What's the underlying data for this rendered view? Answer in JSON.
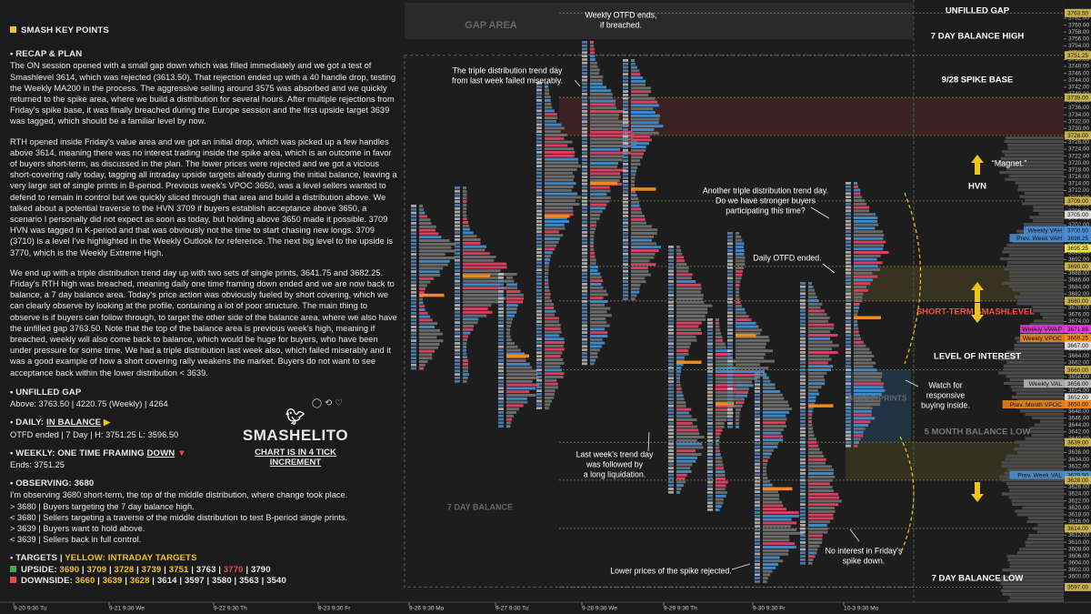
{
  "sidebar": {
    "title": "SMASH KEY POINTS",
    "recap": {
      "heading": "RECAP & PLAN",
      "paragraphs": [
        "The ON session opened with a small gap down which was filled immediately and we got a test of Smashlevel 3614, which was rejected (3613.50). That rejection ended up with a 40 handle drop, testing the Weekly MA200 in the process. The aggressive selling around 3575 was absorbed and we quickly returned to the spike area, where we build a distribution for several hours. After multiple rejections from Friday's spike base, it was finally breached during the Europe session and the first upside target 3639 was tagged, which should be a familiar level by now.",
        "RTH opened inside Friday's value area and we got an initial drop, which was picked up a few handles above 3614, meaning there was no interest trading inside the spike area, which is an outcome in favor of buyers short-term, as discussed in the plan. The lower prices were rejected and we got a vicious short-covering rally today, tagging all intraday upside targets already during the initial balance, leaving a very large set of single prints in B-period. Previous week's VPOC 3650, was a level sellers wanted to defend to remain in control but we quickly sliced through that area and build a distribution above. We talked about a potential traverse to the HVN 3709 if buyers establish acceptance above 3650, a scenario I personally did not expect as soon as today, but holding above 3650 made it possible. 3709 HVN was tagged in K-period and that was obviously not the time to start chasing new longs. 3709 (3710) is a level I've highlighted in the Weekly Outlook for reference. The next big level to the upside is 3770, which is the Weekly Extreme High.",
        "We end up with a triple distribution trend day up with two sets of single prints, 3641.75 and 3682.25. Friday's RTH high was breached, meaning daily one time framing down ended and we are now back to balance, a 7 day balance area. Today's price action was obviously fueled by short covering, which we can clearly observe by looking at the profile, containing a lot of poor structure. The main thing to observe is if buyers can follow through, to target the other side of the balance area, where we also have the unfilled gap 3763.50. Note that the top of the balance area is previous week's high, meaning if breached, weekly will also come back to balance, which would be huge for buyers, who have been under pressure for some time. We had a triple distribution last week also, which failed miserably and it was a good example of how a short covering rally weakens the market. Buyers do not want to see acceptance back within the lower distribution < 3639."
      ]
    },
    "unfilled_gap": {
      "heading": "UNFILLED GAP",
      "text": "Above: 3763.50 | 4220.75 (Weekly) | 4264"
    },
    "daily": {
      "heading": "DAILY:",
      "status": "IN BALANCE",
      "text": "OTFD ended | 7 Day | H: 3751.25 L: 3596.50"
    },
    "weekly": {
      "heading": "WEEKLY: ONE TIME FRAMING",
      "status": "DOWN",
      "text": "Ends: 3751.25"
    },
    "observing": {
      "heading": "OBSERVING: 3680",
      "lines": [
        "I'm observing 3680 short-term, the top of the middle distribution, where change took place.",
        "> 3680 | Buyers targeting the 7 day balance high.",
        "< 3680 | Sellers targeting a traverse of the middle distribution to test B-period single prints.",
        "> 3639 | Buyers want to hold above.",
        "< 3639 | Sellers back in full control."
      ]
    },
    "targets": {
      "heading": "TARGETS",
      "yellow_note": "YELLOW: INTRADAY TARGETS",
      "upside_label": "UPSIDE:",
      "upside": [
        {
          "text": "3690",
          "color": "#f0c419"
        },
        {
          "text": "3709",
          "color": "#f0c419"
        },
        {
          "text": "3728",
          "color": "#f0c419"
        },
        {
          "text": "3739",
          "color": "#f0c419"
        },
        {
          "text": "3751",
          "color": "#f0c419"
        },
        {
          "text": "3763",
          "color": "#e8e8e8"
        },
        {
          "text": "3770",
          "color": "#e84a4a"
        },
        {
          "text": "3790",
          "color": "#e8e8e8"
        }
      ],
      "downside_label": "DOWNSIDE:",
      "downside": [
        {
          "text": "3660",
          "color": "#f0c419"
        },
        {
          "text": "3639",
          "color": "#f0c419"
        },
        {
          "text": "3628",
          "color": "#f0c419"
        },
        {
          "text": "3614",
          "color": "#e8e8e8"
        },
        {
          "text": "3597",
          "color": "#e8e8e8"
        },
        {
          "text": "3580",
          "color": "#e8e8e8"
        },
        {
          "text": "3563",
          "color": "#e8e8e8"
        },
        {
          "text": "3540",
          "color": "#e8e8e8"
        }
      ]
    }
  },
  "brand": {
    "handle": "SMASHELITO",
    "note": "CHART IS IN 4 TICK INCREMENT"
  },
  "chart": {
    "price_ticks": [
      "3762.00",
      "3760.00",
      "3758.00",
      "3756.00",
      "3754.00",
      "3752.00",
      "3750.00",
      "3748.00",
      "3746.00",
      "3744.00",
      "3742.00",
      "3740.00",
      "3738.00",
      "3736.00",
      "3734.00",
      "3732.00",
      "3730.00",
      "3728.00",
      "3726.00",
      "3724.00",
      "3722.00",
      "3720.00",
      "3718.00",
      "3716.00",
      "3714.00",
      "3712.00",
      "3710.00",
      "3708.00",
      "3706.00",
      "3704.00",
      "3702.00",
      "3700.00",
      "3698.00",
      "3696.00",
      "3694.00",
      "3692.00",
      "3690.00",
      "3688.00",
      "3686.00",
      "3684.00",
      "3682.00",
      "3680.00",
      "3678.00",
      "3676.00",
      "3674.00",
      "3672.00",
      "3670.00",
      "3668.00",
      "3666.00",
      "3664.00",
      "3662.00",
      "3660.00",
      "3658.00",
      "3656.00",
      "3654.00",
      "3652.00",
      "3650.00",
      "3648.00",
      "3646.00",
      "3644.00",
      "3642.00",
      "3640.00",
      "3638.00",
      "3636.00",
      "3634.00",
      "3632.00",
      "3630.00",
      "3628.00",
      "3626.00",
      "3624.00",
      "3622.00",
      "3620.00",
      "3618.00",
      "3616.00",
      "3614.00",
      "3612.00",
      "3610.00",
      "3608.00",
      "3606.00",
      "3604.00",
      "3602.00",
      "3600.00"
    ],
    "time_labels": [
      "9-20 9:30 Tu",
      "9-21 9:30 We",
      "9-22 9:30 Th",
      "9-23 9:30 Fr",
      "9-26 9:30 Mo",
      "9-27 9:30 Tu",
      "9-28 9:30 We",
      "9-29 9:30 Th",
      "9-30 9:30 Fr",
      "10-3 9:30 Mo"
    ],
    "price_tags": [
      {
        "price": "3763.50",
        "color": "#c9b24a"
      },
      {
        "price": "3751.25",
        "color": "#c9b24a"
      },
      {
        "price": "3739.00",
        "color": "#c9b24a"
      },
      {
        "price": "3728.00",
        "color": "#c9b24a"
      },
      {
        "price": "3709.00",
        "color": "#c9b24a"
      },
      {
        "price": "3705.00",
        "color": "#dddddd"
      },
      {
        "name": "Weekly VAH",
        "price": "3700.50",
        "color": "#4a90d9"
      },
      {
        "name": "Prev. Week VAH",
        "price": "3698.25",
        "color": "#4a90d9"
      },
      {
        "price": "3695.25",
        "color": "#f0e442"
      },
      {
        "price": "3690.00",
        "color": "#c9b24a"
      },
      {
        "price": "3680.00",
        "color": "#c9b24a"
      },
      {
        "name": "Weekly VWAP",
        "price": "3671.86",
        "color": "#e040e0"
      },
      {
        "name": "Weekly VPOC",
        "price": "3669.25",
        "color": "#f08a1c"
      },
      {
        "price": "3667.00",
        "color": "#dddddd"
      },
      {
        "price": "3660.00",
        "color": "#c9b24a"
      },
      {
        "name": "Weekly VAL",
        "price": "3656.00",
        "color": "#bbbbbb"
      },
      {
        "price": "3652.00",
        "color": "#dddddd"
      },
      {
        "name": "Prev. Month VPOC",
        "price": "3650.00",
        "color": "#f08a1c"
      },
      {
        "price": "3639.00",
        "color": "#c9b24a"
      },
      {
        "name": "Prev. Week VAL",
        "price": "3629.50",
        "color": "#4a90d9"
      },
      {
        "price": "3628.00",
        "color": "#c9b24a"
      },
      {
        "price": "3614.00",
        "color": "#c9b24a"
      },
      {
        "price": "3597.00",
        "color": "#c9b24a"
      }
    ],
    "zone_labels": [
      "UNFILLED GAP",
      "7 DAY BALANCE HIGH",
      "9/28 SPIKE BASE",
      "HVN",
      "“Magnet.”",
      "SHORT-TERM SMASHLEVEL",
      "LEVEL OF INTEREST",
      "5 MONTH BALANCE LOW",
      "7 DAY BALANCE LOW",
      "GAP AREA",
      "7 DAY BALANCE",
      "SINGLE PRINTS"
    ],
    "annotations": [
      [
        "Weekly OTFD ends,",
        "if breached."
      ],
      [
        "The triple distribution trend day",
        "from last week failed miserably."
      ],
      [
        "Another triple distribution trend day.",
        "Do we have stronger buyers",
        "participating this time?"
      ],
      [
        "Daily OTFD ended."
      ],
      [
        "Watch for",
        "responsive",
        "buying inside."
      ],
      [
        "Last week's trend day",
        "was followed by",
        "a long liquidation."
      ],
      [
        "Lower prices of the spike rejected."
      ],
      [
        "No interest in Friday's",
        "spike down."
      ]
    ]
  }
}
